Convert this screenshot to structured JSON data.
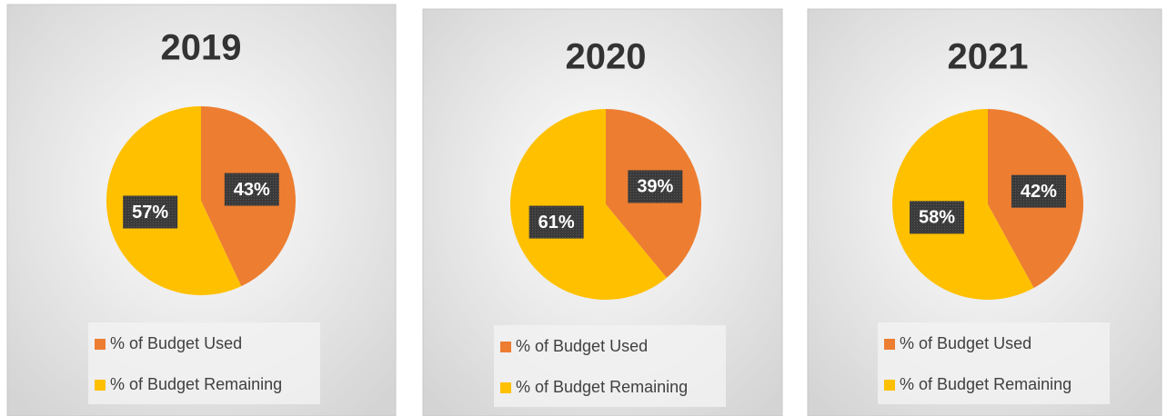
{
  "chart_data": [
    {
      "type": "pie",
      "title": "2019",
      "categories": [
        "% of Budget Used",
        "% of Budget Remaining"
      ],
      "values": [
        43,
        57
      ],
      "value_labels": [
        "43%",
        "57%"
      ],
      "colors": [
        "#ed7d31",
        "#ffc000"
      ]
    },
    {
      "type": "pie",
      "title": "2020",
      "categories": [
        "% of Budget Used",
        "% of Budget Remaining"
      ],
      "values": [
        39,
        61
      ],
      "value_labels": [
        "39%",
        "61%"
      ],
      "colors": [
        "#ed7d31",
        "#ffc000"
      ]
    },
    {
      "type": "pie",
      "title": "2021",
      "categories": [
        "% of Budget Used",
        "% of Budget Remaining"
      ],
      "values": [
        42,
        58
      ],
      "value_labels": [
        "42%",
        "58%"
      ],
      "colors": [
        "#ed7d31",
        "#ffc000"
      ]
    }
  ]
}
